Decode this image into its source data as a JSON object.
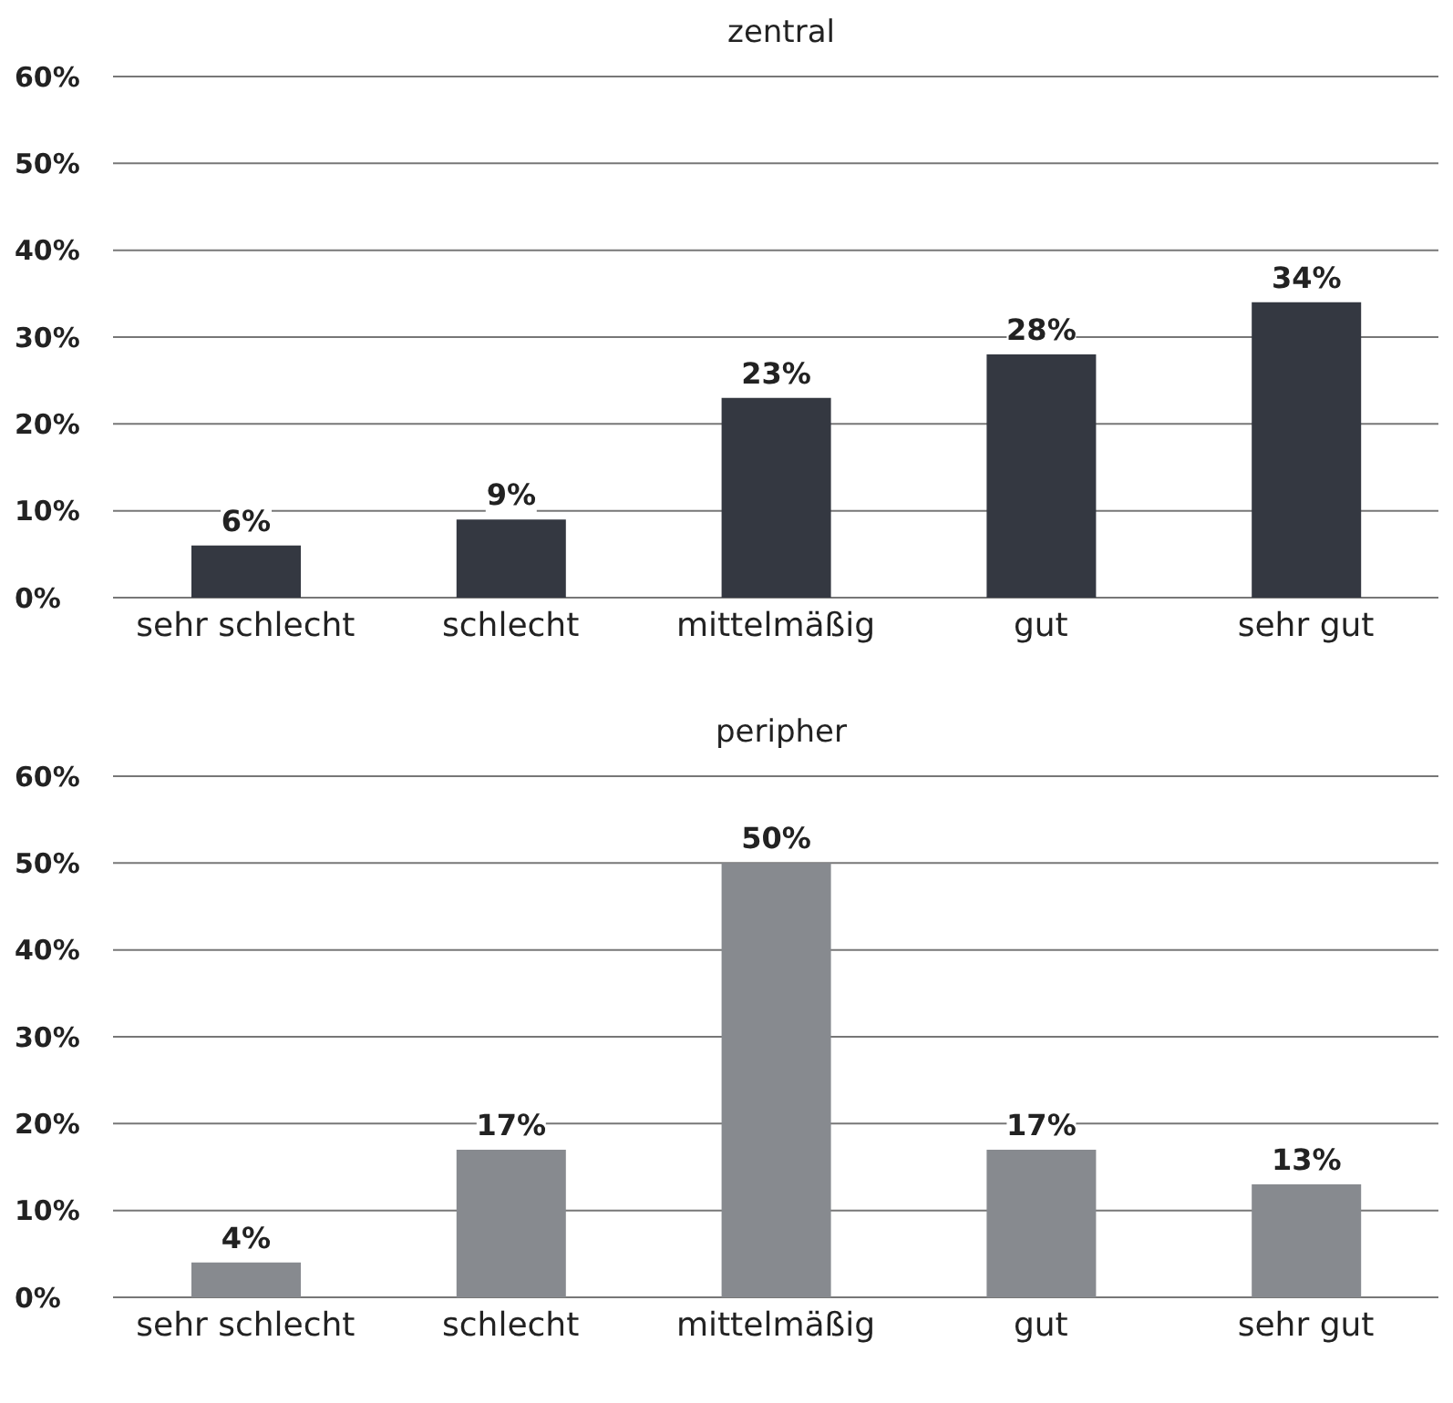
{
  "chart_data": [
    {
      "type": "bar",
      "title": "zentral",
      "categories": [
        "sehr schlecht",
        "schlecht",
        "mittelmäßig",
        "gut",
        "sehr gut"
      ],
      "values": [
        6,
        9,
        23,
        28,
        34
      ],
      "value_labels": [
        "6%",
        "9%",
        "23%",
        "28%",
        "34%"
      ],
      "color": "#343841",
      "ylim": [
        0,
        60
      ],
      "yticks": [
        {
          "value": 0,
          "label": "0%"
        },
        {
          "value": 10,
          "label": "10%"
        },
        {
          "value": 20,
          "label": "20%"
        },
        {
          "value": 30,
          "label": "30%"
        },
        {
          "value": 40,
          "label": "40%"
        },
        {
          "value": 50,
          "label": "50%"
        },
        {
          "value": 60,
          "label": "60%"
        }
      ],
      "grid": "y"
    },
    {
      "type": "bar",
      "title": "peripher",
      "categories": [
        "sehr schlecht",
        "schlecht",
        "mittelmäßig",
        "gut",
        "sehr gut"
      ],
      "values": [
        4,
        17,
        50,
        17,
        13
      ],
      "value_labels": [
        "4%",
        "17%",
        "50%",
        "17%",
        "13%"
      ],
      "color": "#878a8f",
      "ylim": [
        0,
        60
      ],
      "yticks": [
        {
          "value": 0,
          "label": "0%"
        },
        {
          "value": 10,
          "label": "10%"
        },
        {
          "value": 20,
          "label": "20%"
        },
        {
          "value": 30,
          "label": "30%"
        },
        {
          "value": 40,
          "label": "40%"
        },
        {
          "value": 50,
          "label": "50%"
        },
        {
          "value": 60,
          "label": "60%"
        }
      ],
      "grid": "y"
    }
  ]
}
